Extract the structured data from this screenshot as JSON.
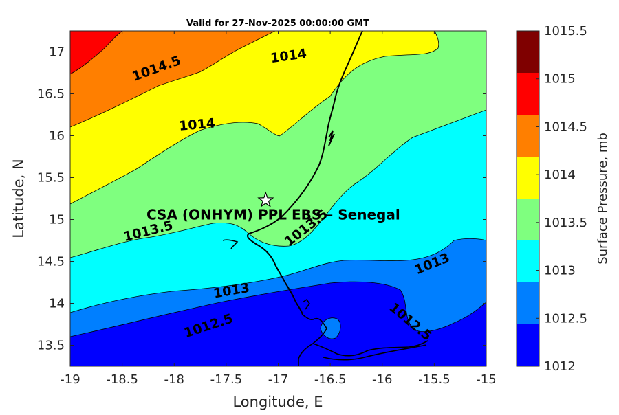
{
  "title": "Valid for 27-Nov-2025 00:00:00 GMT",
  "chart_data": {
    "type": "contour-map",
    "xlabel": "Longitude, E",
    "ylabel": "Latitude, N",
    "xlim": [
      -19,
      -15
    ],
    "ylim": [
      13.25,
      17.25
    ],
    "xticks": [
      "-19",
      "-18.5",
      "-18",
      "-17.5",
      "-17",
      "-16.5",
      "-16",
      "-15.5",
      "-15"
    ],
    "yticks": [
      "13.5",
      "14",
      "14.5",
      "15",
      "15.5",
      "16",
      "16.5",
      "17"
    ],
    "colorbar": {
      "label": "Surface Pressure, mb",
      "levels": [
        "1012",
        "1012.5",
        "1013",
        "1013.5",
        "1014",
        "1014.5",
        "1015",
        "1015.5"
      ],
      "colors": [
        "#0000ff",
        "#007fff",
        "#00ffff",
        "#7fff7f",
        "#ffff00",
        "#ff7f00",
        "#ff0000",
        "#7f0000"
      ]
    },
    "contour_labels": [
      {
        "text": "1014.5",
        "lon": -18.17,
        "lat": 16.8,
        "rotation": -20
      },
      {
        "text": "1014",
        "lon": -16.9,
        "lat": 16.95,
        "rotation": -8
      },
      {
        "text": "1014",
        "lon": -17.78,
        "lat": 16.13,
        "rotation": -5
      },
      {
        "text": "1013.5",
        "lon": -18.25,
        "lat": 14.86,
        "rotation": -14
      },
      {
        "text": "1013.5",
        "lon": -16.73,
        "lat": 14.9,
        "rotation": -38
      },
      {
        "text": "1013",
        "lon": -17.45,
        "lat": 14.15,
        "rotation": -10
      },
      {
        "text": "1013",
        "lon": -15.52,
        "lat": 14.47,
        "rotation": -22
      },
      {
        "text": "1012.5",
        "lon": -17.67,
        "lat": 13.73,
        "rotation": -18
      },
      {
        "text": "1012.5",
        "lon": -15.73,
        "lat": 13.78,
        "rotation": 40
      }
    ],
    "site": {
      "name": "CSA (ONHYM) PPL EBS – Senegal",
      "lon": -17.12,
      "lat": 15.23,
      "marker": "star"
    }
  }
}
